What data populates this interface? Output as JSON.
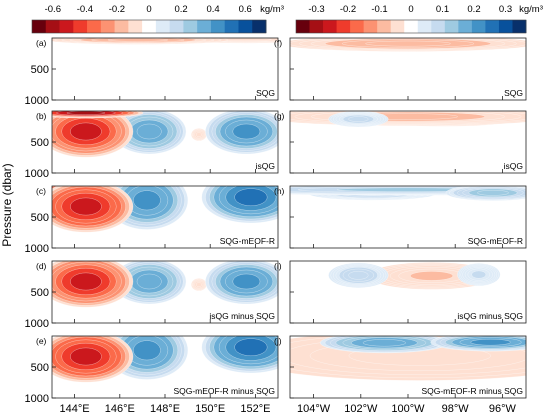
{
  "colorbars": [
    {
      "ticks": [
        "-0.6",
        "-0.4",
        "-0.2",
        "0",
        "0.2",
        "0.4",
        "0.6"
      ],
      "unit": "kg/m³",
      "colors": [
        "#67000d",
        "#a50f15",
        "#cb181d",
        "#ef3b2c",
        "#fb6a4a",
        "#fc9272",
        "#fcbba1",
        "#fee0d2",
        "#ffffff",
        "#deebf7",
        "#c6dbef",
        "#9ecae1",
        "#6baed6",
        "#4292c6",
        "#2171b5",
        "#08519c",
        "#08306b"
      ]
    },
    {
      "ticks": [
        "-0.3",
        "-0.2",
        "-0.1",
        "0",
        "0.1",
        "0.2",
        "0.3"
      ],
      "unit": "kg/m³",
      "colors": [
        "#67000d",
        "#a50f15",
        "#cb181d",
        "#ef3b2c",
        "#fb6a4a",
        "#fc9272",
        "#fcbba1",
        "#fee0d2",
        "#ffffff",
        "#deebf7",
        "#c6dbef",
        "#9ecae1",
        "#6baed6",
        "#4292c6",
        "#2171b5",
        "#08519c",
        "#08306b"
      ]
    }
  ],
  "ylabel": "Pressure (dbar)",
  "yticks": [
    "500",
    "1000"
  ],
  "left_xticks": [
    "144°E",
    "146°E",
    "148°E",
    "150°E",
    "152°E"
  ],
  "right_xticks": [
    "104°W",
    "102°W",
    "100°W",
    "98°W",
    "96°W"
  ],
  "panels": {
    "left": [
      {
        "letter": "(a)",
        "label": "SQG"
      },
      {
        "letter": "(b)",
        "label": "isQG"
      },
      {
        "letter": "(c)",
        "label": "SQG-mEOF-R"
      },
      {
        "letter": "(d)",
        "label": "isQG minus SQG"
      },
      {
        "letter": "(e)",
        "label": "SQG-mEOF-R minus SQG"
      }
    ],
    "right": [
      {
        "letter": "(f)",
        "label": "SQG"
      },
      {
        "letter": "(g)",
        "label": "isQG"
      },
      {
        "letter": "(h)",
        "label": "SQG-mEOF-R"
      },
      {
        "letter": "(i)",
        "label": "isQG minus SQG"
      },
      {
        "letter": "(j)",
        "label": "SQG-mEOF-R minus SQG"
      }
    ]
  },
  "chart_data": [
    {
      "type": "heatmap",
      "title": "",
      "description_panels": [
        "(a) SQG",
        "(b) isQG",
        "(c) SQG-mEOF-R",
        "(d) isQG minus SQG",
        "(e) SQG-mEOF-R minus SQG"
      ],
      "xlabel": "",
      "ylabel": "Pressure (dbar)",
      "xlim_deg_east": [
        143,
        153
      ],
      "ylim": [
        1000,
        0
      ],
      "xticks": [
        "144°E",
        "146°E",
        "148°E",
        "150°E",
        "152°E"
      ],
      "yticks": [
        500,
        1000
      ],
      "color_range": [
        -0.7,
        0.7
      ],
      "colorbar_unit": "kg/m³",
      "anomalies": [
        [
          {
            "x": 146.8,
            "p": 30,
            "sx": 2.2,
            "sp": 40,
            "v": -0.14
          },
          {
            "x": 151.5,
            "p": 25,
            "sx": 2.0,
            "sp": 35,
            "v": -0.08
          }
        ],
        [
          {
            "x": 144.5,
            "p": 330,
            "sx": 1.15,
            "sp": 230,
            "v": -0.48
          },
          {
            "x": 144.5,
            "p": 30,
            "sx": 1.4,
            "sp": 45,
            "v": -0.55
          },
          {
            "x": 147.3,
            "p": 330,
            "sx": 0.9,
            "sp": 200,
            "v": 0.34
          },
          {
            "x": 151.6,
            "p": 330,
            "sx": 1.0,
            "sp": 200,
            "v": 0.4
          },
          {
            "x": 149.5,
            "p": 380,
            "sx": 0.2,
            "sp": 60,
            "v": -0.06
          }
        ],
        [
          {
            "x": 144.5,
            "p": 330,
            "sx": 1.15,
            "sp": 230,
            "v": -0.5
          },
          {
            "x": 144.5,
            "p": 30,
            "sx": 1.4,
            "sp": 40,
            "v": -0.4
          },
          {
            "x": 147.2,
            "p": 230,
            "sx": 1.0,
            "sp": 260,
            "v": 0.42
          },
          {
            "x": 151.8,
            "p": 180,
            "sx": 1.2,
            "sp": 230,
            "v": 0.5
          },
          {
            "x": 151.8,
            "p": 25,
            "sx": 1.0,
            "sp": 40,
            "v": 0.35
          }
        ],
        [
          {
            "x": 144.5,
            "p": 330,
            "sx": 1.15,
            "sp": 230,
            "v": -0.48
          },
          {
            "x": 147.3,
            "p": 330,
            "sx": 0.9,
            "sp": 200,
            "v": 0.34
          },
          {
            "x": 151.6,
            "p": 330,
            "sx": 1.0,
            "sp": 200,
            "v": 0.4
          },
          {
            "x": 149.5,
            "p": 380,
            "sx": 0.2,
            "sp": 60,
            "v": -0.06
          }
        ],
        [
          {
            "x": 144.5,
            "p": 330,
            "sx": 1.15,
            "sp": 230,
            "v": -0.5
          },
          {
            "x": 147.2,
            "p": 230,
            "sx": 1.0,
            "sp": 260,
            "v": 0.42
          },
          {
            "x": 151.8,
            "p": 180,
            "sx": 1.2,
            "sp": 230,
            "v": 0.5
          }
        ]
      ]
    },
    {
      "type": "heatmap",
      "title": "",
      "description_panels": [
        "(f) SQG",
        "(g) isQG",
        "(h) SQG-mEOF-R",
        "(i) isQG minus SQG",
        "(j) SQG-mEOF-R minus SQG"
      ],
      "xlabel": "",
      "ylabel": "",
      "xlim_deg_west": [
        105,
        95
      ],
      "ylim": [
        1000,
        0
      ],
      "xticks": [
        "104°W",
        "102°W",
        "100°W",
        "98°W",
        "96°W"
      ],
      "yticks": [
        500,
        1000
      ],
      "color_range": [
        -0.35,
        0.35
      ],
      "colorbar_unit": "kg/m³",
      "anomalies": [
        [
          {
            "x": 100.0,
            "p": 90,
            "sx": 3.0,
            "sp": 70,
            "v": -0.07
          },
          {
            "x": 98.5,
            "p": 80,
            "sx": 1.5,
            "sp": 40,
            "v": -0.06
          }
        ],
        [
          {
            "x": 100.0,
            "p": 90,
            "sx": 3.5,
            "sp": 80,
            "v": -0.06
          },
          {
            "x": 98.5,
            "p": 120,
            "sx": 1.8,
            "sp": 70,
            "v": -0.05
          },
          {
            "x": 102.1,
            "p": 130,
            "sx": 0.7,
            "sp": 70,
            "v": 0.06
          },
          {
            "x": 95.8,
            "p": 100,
            "sx": 0.5,
            "sp": 60,
            "v": 0.04
          }
        ],
        [
          {
            "x": 100.0,
            "p": 60,
            "sx": 5.0,
            "sp": 50,
            "v": 0.1
          },
          {
            "x": 101.5,
            "p": 120,
            "sx": 1.5,
            "sp": 60,
            "v": 0.08
          },
          {
            "x": 96.4,
            "p": 110,
            "sx": 1.1,
            "sp": 70,
            "v": 0.12
          },
          {
            "x": 104.8,
            "p": 10,
            "sx": 0.4,
            "sp": 20,
            "v": -0.05
          }
        ],
        [
          {
            "x": 102.1,
            "p": 230,
            "sx": 0.7,
            "sp": 110,
            "v": 0.07
          },
          {
            "x": 99.0,
            "p": 240,
            "sx": 1.5,
            "sp": 120,
            "v": -0.05
          },
          {
            "x": 97.0,
            "p": 220,
            "sx": 0.5,
            "sp": 100,
            "v": 0.05
          }
        ],
        [
          {
            "x": 101.0,
            "p": 110,
            "sx": 1.5,
            "sp": 90,
            "v": 0.18
          },
          {
            "x": 96.5,
            "p": 100,
            "sx": 1.4,
            "sp": 80,
            "v": 0.2
          },
          {
            "x": 99.5,
            "p": 320,
            "sx": 5.0,
            "sp": 260,
            "v": -0.02
          }
        ]
      ]
    }
  ]
}
